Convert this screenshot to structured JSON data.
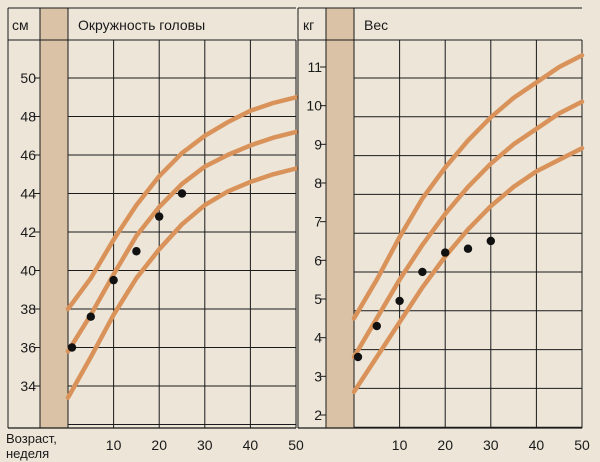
{
  "colors": {
    "background": "#ece5d8",
    "sidebar": "#d9c2a6",
    "grid": "#1a1a1a",
    "curve": "#d9935a",
    "point": "#111111"
  },
  "x_axis_label_line1": "Возраст,",
  "x_axis_label_line2": "неделя",
  "chart_data": [
    {
      "type": "line",
      "title": "Окружность головы",
      "ylabel": "см",
      "xlim": [
        0,
        50
      ],
      "ylim": [
        32,
        52
      ],
      "x_ticks": [
        10,
        20,
        30,
        40,
        50
      ],
      "y_ticks": [
        34,
        36,
        38,
        40,
        42,
        44,
        46,
        48,
        50
      ],
      "y_tick_labels": [
        "34",
        "36",
        "38",
        "40",
        "42",
        "44",
        "46",
        "48",
        "50"
      ],
      "grid": true,
      "curves": [
        {
          "x": [
            0,
            5,
            10,
            15,
            20,
            25,
            30,
            35,
            40,
            45,
            50
          ],
          "y": [
            38.0,
            39.6,
            41.6,
            43.4,
            44.9,
            46.1,
            47.0,
            47.7,
            48.3,
            48.7,
            49.0
          ]
        },
        {
          "x": [
            0,
            5,
            10,
            15,
            20,
            25,
            30,
            35,
            40,
            45,
            50
          ],
          "y": [
            35.8,
            37.7,
            39.8,
            41.8,
            43.3,
            44.5,
            45.4,
            46.0,
            46.5,
            46.9,
            47.2
          ]
        },
        {
          "x": [
            0,
            5,
            10,
            15,
            20,
            25,
            30,
            35,
            40,
            45,
            50
          ],
          "y": [
            33.4,
            35.5,
            37.7,
            39.6,
            41.1,
            42.4,
            43.4,
            44.1,
            44.6,
            45.0,
            45.3
          ]
        }
      ],
      "points": {
        "x": [
          0,
          5,
          10,
          15,
          20,
          25
        ],
        "y": [
          36.0,
          37.6,
          39.5,
          41.0,
          42.8,
          44.0
        ]
      }
    },
    {
      "type": "line",
      "title": "Вес",
      "ylabel": "кг",
      "xlim": [
        0,
        50
      ],
      "ylim": [
        1.5,
        12
      ],
      "x_ticks": [
        10,
        20,
        30,
        40,
        50
      ],
      "y_ticks": [
        2,
        3,
        4,
        5,
        6,
        7,
        8,
        9,
        10,
        11
      ],
      "y_tick_labels": [
        "2",
        "3",
        "4",
        "5",
        "6",
        "7",
        "8",
        "9",
        "10",
        "11"
      ],
      "grid": true,
      "curves": [
        {
          "x": [
            0,
            5,
            10,
            15,
            20,
            25,
            30,
            35,
            40,
            45,
            50
          ],
          "y": [
            4.5,
            5.5,
            6.6,
            7.6,
            8.4,
            9.1,
            9.7,
            10.2,
            10.6,
            11.0,
            11.3
          ]
        },
        {
          "x": [
            0,
            5,
            10,
            15,
            20,
            25,
            30,
            35,
            40,
            45,
            50
          ],
          "y": [
            3.5,
            4.5,
            5.5,
            6.4,
            7.2,
            7.9,
            8.5,
            9.0,
            9.4,
            9.8,
            10.1
          ]
        },
        {
          "x": [
            0,
            5,
            10,
            15,
            20,
            25,
            30,
            35,
            40,
            45,
            50
          ],
          "y": [
            2.6,
            3.5,
            4.4,
            5.3,
            6.1,
            6.8,
            7.4,
            7.9,
            8.3,
            8.6,
            8.9
          ]
        }
      ],
      "points": {
        "x": [
          0,
          5,
          10,
          15,
          20,
          25,
          30
        ],
        "y": [
          3.5,
          4.3,
          4.95,
          5.7,
          6.2,
          6.3,
          6.5
        ]
      }
    }
  ]
}
